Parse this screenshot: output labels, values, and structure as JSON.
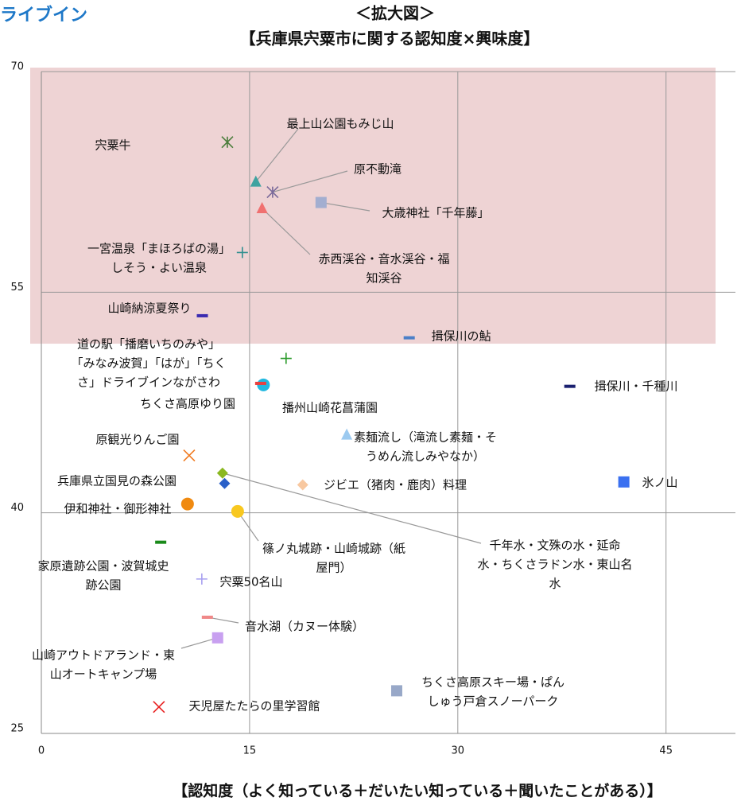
{
  "corner_text": "ライブイン",
  "chart_data": {
    "type": "scatter",
    "title": "＜拡大図＞",
    "subtitle": "【兵庫県宍粟市に関する認知度×興味度】",
    "x_label": "【認知度（よく知っている＋だいたい知っている＋聞いたことがある）】",
    "xlim": [
      0,
      50
    ],
    "xticks": [
      0,
      15,
      30,
      45
    ],
    "ylim": [
      25,
      70
    ],
    "yticks": [
      25,
      40,
      55,
      70
    ],
    "grid": true,
    "highlight_ylim": [
      51.5,
      70
    ],
    "highlight_color": "#eed3d4",
    "points": [
      {
        "label": [
          "宍粟牛"
        ],
        "x": 13.4,
        "y": 65.2,
        "marker": "asterisk",
        "color": "#4a7c3a"
      },
      {
        "label": [
          "最上山公園もみじ山"
        ],
        "x": 15.45,
        "y": 62.5,
        "marker": "triangle",
        "color": "#3fa3a0"
      },
      {
        "label": [
          "原不動滝"
        ],
        "x": 16.66,
        "y": 61.8,
        "marker": "asterisk",
        "color": "#7a6a9a"
      },
      {
        "label": [
          "大歳神社「千年藤」"
        ],
        "x": 20.15,
        "y": 61.1,
        "marker": "square",
        "color": "#a3aed0"
      },
      {
        "label": [
          "赤西渓谷・音水渓谷・福",
          "知渓谷"
        ],
        "x": 15.9,
        "y": 60.7,
        "marker": "triangle",
        "color": "#f07070"
      },
      {
        "label": [
          "一宮温泉「まほろばの湯」",
          "しそう・よい温泉"
        ],
        "x": 14.48,
        "y": 57.7,
        "marker": "plus",
        "color": "#2f8f8f"
      },
      {
        "label": [
          "山崎納涼夏祭り"
        ],
        "x": 11.6,
        "y": 53.4,
        "marker": "dash",
        "color": "#3a2ab0"
      },
      {
        "label": [
          "揖保川の鮎"
        ],
        "x": 26.5,
        "y": 51.9,
        "marker": "dash",
        "color": "#4a7fc8"
      },
      {
        "label": [
          "道の駅「播磨いちのみや」",
          "「みなみ波賀」「はが」「ちく",
          "さ」ドライブインながさわ"
        ],
        "x": 17.63,
        "y": 50.5,
        "marker": "plus",
        "color": "#2a9a2a"
      },
      {
        "label": [
          "揖保川・千種川"
        ],
        "x": 38.07,
        "y": 48.6,
        "marker": "dash",
        "color": "#1a2070"
      },
      {
        "label": [
          "播州山崎花菖蒲園"
        ],
        "x": 16.0,
        "y": 48.7,
        "marker": "circle",
        "color": "#22b8e0"
      },
      {
        "label": [
          "ちくさ高原ゆり園"
        ],
        "x": 15.8,
        "y": 48.8,
        "marker": "dash",
        "color": "#e84040"
      },
      {
        "label": [
          "素麺流し（滝流し素麺・そ",
          "うめん流しみやなか）"
        ],
        "x": 22.0,
        "y": 45.3,
        "marker": "triangle",
        "color": "#9ccaf0"
      },
      {
        "label": [
          "原観光りんご園"
        ],
        "x": 10.65,
        "y": 43.9,
        "marker": "x",
        "color": "#f07a20"
      },
      {
        "label": [
          "兵庫県立国見の森公園"
        ],
        "x": 13.2,
        "y": 42.0,
        "marker": "diamond",
        "color": "#2a60c8"
      },
      {
        "label": [
          "千年水・文殊の水・延命",
          "水・ちくさラドン水・東山名",
          "水"
        ],
        "x": 13.05,
        "y": 42.7,
        "marker": "diamond",
        "color": "#8ab820"
      },
      {
        "label": [
          "ジビエ（猪肉・鹿肉）料理"
        ],
        "x": 18.83,
        "y": 41.9,
        "marker": "diamond",
        "color": "#f8c8a0"
      },
      {
        "label": [
          "氷ノ山"
        ],
        "x": 41.96,
        "y": 42.1,
        "marker": "square",
        "color": "#3a70f0"
      },
      {
        "label": [
          "伊和神社・御形神社"
        ],
        "x": 10.53,
        "y": 40.6,
        "marker": "circle",
        "color": "#f08a10"
      },
      {
        "label": [
          "篠ノ丸城跡・山崎城跡（紙",
          "屋門）"
        ],
        "x": 14.14,
        "y": 40.1,
        "marker": "circle",
        "color": "#f8c820"
      },
      {
        "label": [
          "家原遺跡公園・波賀城史",
          "跡公園"
        ],
        "x": 8.6,
        "y": 38.0,
        "marker": "dash",
        "color": "#1a8a1a"
      },
      {
        "label": [
          "宍粟50名山"
        ],
        "x": 11.56,
        "y": 35.5,
        "marker": "plus",
        "color": "#a8a0f0"
      },
      {
        "label": [
          "音水湖（カヌー体験）"
        ],
        "x": 11.96,
        "y": 32.9,
        "marker": "dash",
        "color": "#f08888"
      },
      {
        "label": [
          "山崎アウトドアランド・東",
          "山オートキャンプ場"
        ],
        "x": 12.7,
        "y": 31.5,
        "marker": "square",
        "color": "#c8a0f0"
      },
      {
        "label": [
          "ちくさ高原スキー場・ぱん",
          "しゅう戸倉スノーパーク"
        ],
        "x": 25.6,
        "y": 27.9,
        "marker": "square",
        "color": "#98a8c8"
      },
      {
        "label": [
          "天児屋たたらの里学習館"
        ],
        "x": 8.47,
        "y": 26.8,
        "marker": "x",
        "color": "#e82020"
      }
    ]
  }
}
